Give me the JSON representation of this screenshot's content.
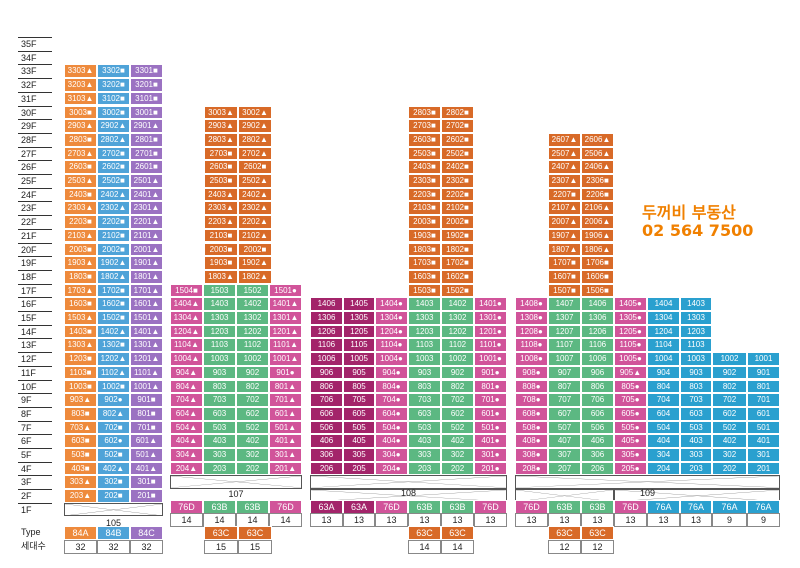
{
  "floors": [
    "35F",
    "34F",
    "33F",
    "32F",
    "31F",
    "30F",
    "29F",
    "28F",
    "27F",
    "26F",
    "25F",
    "24F",
    "23F",
    "22F",
    "21F",
    "20F",
    "19F",
    "18F",
    "17F",
    "16F",
    "15F",
    "14F",
    "13F",
    "12F",
    "11F",
    "10F",
    "9F",
    "8F",
    "7F",
    "6F",
    "5F",
    "4F",
    "3F",
    "2F",
    "1F"
  ],
  "row_labels": {
    "type": "Type",
    "households": "세대수"
  },
  "buildings": [
    {
      "name": "105",
      "types": [
        {
          "label": "84A",
          "color": "#ee8a3c",
          "count": "32"
        },
        {
          "label": "84B",
          "color": "#4fa3d8",
          "count": "32"
        },
        {
          "label": "84C",
          "color": "#9b72c2",
          "count": "32"
        }
      ]
    },
    {
      "name": "107",
      "types": [
        {
          "label": "76D",
          "color": "#d1549a",
          "count": "14"
        },
        {
          "label": "63B",
          "color": "#5cb882",
          "count": "14"
        },
        {
          "label": "63B",
          "color": "#5cb882",
          "count": "14"
        },
        {
          "label": "76D",
          "color": "#d1549a",
          "count": "14"
        }
      ],
      "sub_types": [
        {
          "label": "63C",
          "color": "#d86a28",
          "count": "15"
        },
        {
          "label": "63C",
          "color": "#d86a28",
          "count": "15"
        }
      ]
    },
    {
      "name": "108",
      "types": [
        {
          "label": "63A",
          "color": "#a3246a",
          "count": "13"
        },
        {
          "label": "63A",
          "color": "#a3246a",
          "count": "13"
        },
        {
          "label": "76D",
          "color": "#d1549a",
          "count": "13"
        },
        {
          "label": "63B",
          "color": "#5cb882",
          "count": "13"
        },
        {
          "label": "63B",
          "color": "#5cb882",
          "count": "13"
        },
        {
          "label": "76D",
          "color": "#d1549a",
          "count": "13"
        }
      ],
      "sub_types": [
        {
          "label": "63C",
          "color": "#d86a28",
          "count": "14"
        },
        {
          "label": "63C",
          "color": "#d86a28",
          "count": "14"
        }
      ]
    },
    {
      "name": "109",
      "types": [
        {
          "label": "76D",
          "color": "#d1549a",
          "count": "13"
        },
        {
          "label": "63B",
          "color": "#5cb882",
          "count": "13"
        },
        {
          "label": "63B",
          "color": "#5cb882",
          "count": "13"
        },
        {
          "label": "76D",
          "color": "#d1549a",
          "count": "13"
        },
        {
          "label": "76A",
          "color": "#2aa0cf",
          "count": "13"
        },
        {
          "label": "76A",
          "color": "#2aa0cf",
          "count": "13"
        },
        {
          "label": "76A",
          "color": "#2aa0cf",
          "count": "9"
        },
        {
          "label": "76A",
          "color": "#2aa0cf",
          "count": "9"
        }
      ],
      "sub_types": [
        {
          "label": "63C",
          "color": "#d86a28",
          "count": "12"
        },
        {
          "label": "63C",
          "color": "#d86a28",
          "count": "12"
        }
      ]
    }
  ],
  "promo": {
    "line1": "두꺼비 부동산",
    "line2": "02 564 7500"
  },
  "units": {
    "b105c1": [
      "3303▲",
      "3203▲",
      "3103▲",
      "3003■",
      "2903▲",
      "2803■",
      "2703▲",
      "2603■",
      "2503▲",
      "2403■",
      "2303▲",
      "2203■",
      "2103▲",
      "2003■",
      "1903▲",
      "1803■",
      "1703▲",
      "1603■",
      "1503▲",
      "1403■",
      "1303▲",
      "1203■",
      "1103■",
      "1003■",
      "903▲",
      "803■",
      "703▲",
      "603■",
      "503■",
      "403■",
      "303▲",
      "203▲"
    ],
    "b105c2": [
      "3302■",
      "3202■",
      "3102■",
      "3002■",
      "2902▲",
      "2802▲",
      "2702■",
      "2602■",
      "2502■",
      "2402▲",
      "2302▲",
      "2202■",
      "2102■",
      "2002■",
      "1902▲",
      "1802▲",
      "1702■",
      "1602■",
      "1502■",
      "1402▲",
      "1302■",
      "1202▲",
      "1102▲",
      "1002■",
      "902●",
      "802▲",
      "702■",
      "602●",
      "502■",
      "402▲",
      "302■",
      "202■"
    ],
    "b105c3": [
      "3301■",
      "3201■",
      "3101■",
      "3001■",
      "2901▲",
      "2801■",
      "2701■",
      "2601■",
      "2501▲",
      "2401▲",
      "2301▲",
      "2201▲",
      "2101▲",
      "2001▲",
      "1901▲",
      "1801▲",
      "1701▲",
      "1601▲",
      "1501▲",
      "1401▲",
      "1301▲",
      "1201▲",
      "1101▲",
      "1001▲",
      "901■",
      "801■",
      "701■",
      "601▲",
      "501▲",
      "401▲",
      "301■",
      "201■"
    ],
    "b107o1": [
      "3003▲",
      "2903▲",
      "2803▲",
      "2703■",
      "2603■",
      "2503■",
      "2403▲",
      "2303▲",
      "2203▲",
      "2103■",
      "2003■",
      "1903■",
      "1803▲",
      "1703▲",
      "1603▲"
    ],
    "b107o2": [
      "3002▲",
      "2902▲",
      "2802▲",
      "2702▲",
      "2602■",
      "2502▲",
      "2402▲",
      "2302▲",
      "2202▲",
      "2102▲",
      "2002■",
      "1902▲",
      "1802▲",
      "1702▲",
      "1602▲"
    ],
    "b107c1": [
      "1504■",
      "1404▲",
      "1304▲",
      "1204▲",
      "1104▲",
      "1004▲",
      "904▲",
      "804▲",
      "704▲",
      "604▲",
      "504▲",
      "404▲",
      "304▲",
      "204▲"
    ],
    "b107c2": [
      "1503",
      "1403",
      "1303",
      "1203",
      "1103",
      "1003",
      "903",
      "803",
      "703",
      "603",
      "503",
      "403",
      "303",
      "203"
    ],
    "b107c3": [
      "1502",
      "1402",
      "1302",
      "1202",
      "1102",
      "1002",
      "902",
      "802",
      "702",
      "602",
      "502",
      "402",
      "302",
      "202"
    ],
    "b107c4": [
      "1501●",
      "1401▲",
      "1301▲",
      "1201▲",
      "1101▲",
      "1001▲",
      "901●",
      "801▲",
      "701▲",
      "601▲",
      "501▲",
      "401▲",
      "301▲",
      "201▲"
    ],
    "b108o1": [
      "2803■",
      "2703■",
      "2603■",
      "2503■",
      "2403■",
      "2303■",
      "2203■",
      "2103■",
      "2003■",
      "1903■",
      "1803■",
      "1703■",
      "1603■",
      "1503■"
    ],
    "b108o2": [
      "2802■",
      "2702■",
      "2602■",
      "2502■",
      "2402■",
      "2302■",
      "2202■",
      "2102■",
      "2002■",
      "1902■",
      "1802■",
      "1702■",
      "1602■",
      "1502■"
    ],
    "b108c1": [
      "1406",
      "1306",
      "1206",
      "1106",
      "1006",
      "906",
      "806",
      "706",
      "606",
      "506",
      "406",
      "306",
      "206"
    ],
    "b108c2": [
      "1405",
      "1305",
      "1205",
      "1105",
      "1005",
      "905",
      "805",
      "705",
      "605",
      "505",
      "405",
      "305",
      "205"
    ],
    "b108c3": [
      "1404●",
      "1304●",
      "1204●",
      "1104●",
      "1004●",
      "904●",
      "804●",
      "704●",
      "604●",
      "504●",
      "404●",
      "304●",
      "204●"
    ],
    "b108c4": [
      "1403",
      "1303",
      "1203",
      "1103",
      "1003",
      "903",
      "803",
      "703",
      "603",
      "503",
      "403",
      "303",
      "203"
    ],
    "b108c5": [
      "1402",
      "1302",
      "1202",
      "1102",
      "1002",
      "902",
      "802",
      "702",
      "602",
      "502",
      "402",
      "302",
      "202"
    ],
    "b108c6": [
      "1401●",
      "1301●",
      "1201●",
      "1101●",
      "1001●",
      "901●",
      "801●",
      "701●",
      "601●",
      "501●",
      "401●",
      "301●",
      "201●"
    ],
    "b109o1": [
      "2607▲",
      "2507▲",
      "2407▲",
      "2307▲",
      "2207■",
      "2107▲",
      "2007▲",
      "1907▲",
      "1807▲",
      "1707■",
      "1607■",
      "1507■"
    ],
    "b109o2": [
      "2606▲",
      "2506▲",
      "2406▲",
      "2306■",
      "2206■",
      "2106▲",
      "2006▲",
      "1906▲",
      "1806▲",
      "1706■",
      "1606■",
      "1506■"
    ],
    "b109c1": [
      "1408●",
      "1308●",
      "1208●",
      "1108●",
      "1008●",
      "908●",
      "808●",
      "708●",
      "608●",
      "508●",
      "408●",
      "308●",
      "208●"
    ],
    "b109c2": [
      "1407",
      "1307",
      "1207",
      "1107",
      "1007",
      "907",
      "807",
      "707",
      "607",
      "507",
      "407",
      "307",
      "207"
    ],
    "b109c3": [
      "1406",
      "1306",
      "1206",
      "1106",
      "1006",
      "906",
      "806",
      "706",
      "606",
      "506",
      "406",
      "306",
      "206"
    ],
    "b109c4": [
      "1405●",
      "1305●",
      "1205●",
      "1105●",
      "1005●",
      "905▲",
      "805●",
      "705●",
      "605●",
      "505●",
      "405●",
      "305●",
      "205●"
    ],
    "b109c5": [
      "1404",
      "1304",
      "1204",
      "1104",
      "1004",
      "904",
      "804",
      "704",
      "604",
      "504",
      "404",
      "304",
      "204"
    ],
    "b109c6": [
      "1403",
      "1303",
      "1203",
      "1103",
      "1003",
      "903",
      "803",
      "703",
      "603",
      "503",
      "403",
      "303",
      "203"
    ],
    "b109c7": [
      "1002",
      "902",
      "802",
      "702",
      "602",
      "502",
      "402",
      "302",
      "202"
    ],
    "b109c8": [
      "1001",
      "901",
      "801",
      "701",
      "601",
      "501",
      "401",
      "301",
      "201"
    ]
  }
}
